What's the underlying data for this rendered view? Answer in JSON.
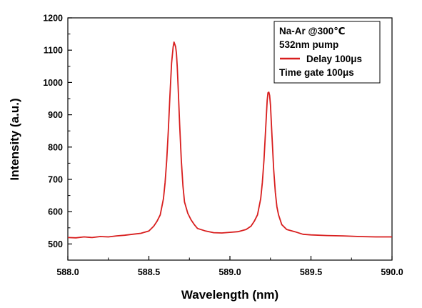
{
  "chart_data": {
    "type": "line",
    "xlabel": "Wavelength (nm)",
    "ylabel": "Intensity (a.u.)",
    "xlim": [
      588.0,
      590.0
    ],
    "ylim": [
      450,
      1200
    ],
    "xticks": [
      588.0,
      588.5,
      589.0,
      589.5,
      590.0
    ],
    "xtick_labels": [
      "588.0",
      "588.5",
      "589.0",
      "589.5",
      "590.0"
    ],
    "yticks": [
      500,
      600,
      700,
      800,
      900,
      1000,
      1100,
      1200
    ],
    "ytick_labels": [
      "500",
      "600",
      "700",
      "800",
      "900",
      "1000",
      "1100",
      "1200"
    ],
    "grid": false,
    "legend_position": "top-right",
    "legend_lines": [
      "Na-Ar @300℃",
      "532nm pump",
      "Delay 100μs",
      "Time gate 100μs"
    ],
    "series": [
      {
        "name": "Delay 100μs",
        "color": "#d81e1e",
        "x": [
          588.0,
          588.05,
          588.1,
          588.15,
          588.2,
          588.25,
          588.3,
          588.35,
          588.4,
          588.45,
          588.5,
          588.53,
          588.55,
          588.57,
          588.59,
          588.6,
          588.61,
          588.62,
          588.63,
          588.64,
          588.65,
          588.655,
          588.66,
          588.665,
          588.67,
          588.675,
          588.68,
          588.69,
          588.7,
          588.71,
          588.72,
          588.74,
          588.76,
          588.78,
          588.8,
          588.85,
          588.9,
          588.95,
          589.0,
          589.05,
          589.1,
          589.13,
          589.15,
          589.17,
          589.19,
          589.2,
          589.21,
          589.22,
          589.23,
          589.235,
          589.24,
          589.245,
          589.25,
          589.255,
          589.26,
          589.27,
          589.28,
          589.29,
          589.3,
          589.32,
          589.35,
          589.4,
          589.45,
          589.5,
          589.6,
          589.7,
          589.8,
          589.9,
          589.95,
          590.0
        ],
        "y": [
          520,
          519,
          522,
          520,
          523,
          522,
          525,
          527,
          530,
          533,
          540,
          555,
          570,
          590,
          640,
          690,
          760,
          850,
          960,
          1060,
          1110,
          1125,
          1118,
          1110,
          1090,
          1050,
          990,
          870,
          760,
          680,
          630,
          595,
          575,
          560,
          548,
          540,
          535,
          534,
          536,
          538,
          545,
          555,
          570,
          590,
          640,
          690,
          760,
          850,
          945,
          968,
          970,
          960,
          930,
          880,
          830,
          730,
          660,
          615,
          590,
          560,
          545,
          538,
          530,
          528,
          526,
          525,
          523,
          522,
          522,
          522
        ]
      }
    ]
  }
}
